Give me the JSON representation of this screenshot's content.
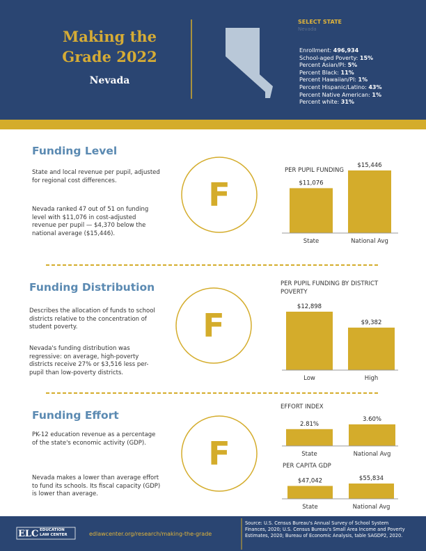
{
  "header": {
    "title": "Making the Grade 2022",
    "state": "Nevada",
    "select_label": "SELECT STATE",
    "select_value": "Nevada",
    "stats": [
      {
        "label": "Enrollment:",
        "value": "496,934"
      },
      {
        "label": "School-aged Poverty:",
        "value": "15%"
      },
      {
        "label": "Percent Asian/PI:",
        "value": "5%"
      },
      {
        "label": "Percent Black:",
        "value": "11%"
      },
      {
        "label": "Percent Hawaiian/PI:",
        "value": "1%"
      },
      {
        "label": "Percent Hispanic/Latino:",
        "value": "43%"
      },
      {
        "label": "Percent Native American:",
        "value": "1%"
      },
      {
        "label": "Percent white:",
        "value": "31%"
      }
    ]
  },
  "sections": [
    {
      "title": "Funding Level",
      "description": "State and local revenue per pupil, adjusted for regional cost differences.",
      "detail": "Nevada ranked 47 out of 51 on funding level with $11,076 in cost-adjusted revenue per pupil — $4,370  below the national average ($15,446).",
      "grade": "F",
      "charts": [
        {
          "type": "bar",
          "title": "PER PUPIL FUNDING",
          "categories": [
            "State",
            "National Avg"
          ],
          "values": [
            11076,
            15446
          ],
          "value_labels": [
            "$11,076",
            "$15,446"
          ]
        }
      ]
    },
    {
      "title": "Funding Distribution",
      "description": "Describes the allocation of funds to school districts relative to the concentration of student poverty.",
      "detail": "Nevada's funding distribution was regressive: on average, high-poverty districts receive 27% or $3,516 less per-pupil than low-poverty districts.",
      "grade": "F",
      "charts": [
        {
          "type": "bar",
          "title": "PER PUPIL FUNDING BY DISTRICT POVERTY",
          "categories": [
            "Low",
            "High"
          ],
          "values": [
            12898,
            9382
          ],
          "value_labels": [
            "$12,898",
            "$9,382"
          ]
        }
      ]
    },
    {
      "title": "Funding Effort",
      "description": "PK-12 education revenue as a percentage of the state's economic activity (GDP).",
      "detail": "Nevada makes a lower than average effort to fund its schools. Its fiscal capacity (GDP) is lower than average.",
      "grade": "F",
      "charts": [
        {
          "type": "bar",
          "title": "EFFORT INDEX",
          "categories": [
            "State",
            "National Avg"
          ],
          "values": [
            2.81,
            3.6
          ],
          "value_labels": [
            "2.81%",
            "3.60%"
          ]
        },
        {
          "type": "bar",
          "title": "PER CAPITA GDP",
          "categories": [
            "State",
            "National Avg"
          ],
          "values": [
            47042,
            55834
          ],
          "value_labels": [
            "$47,042",
            "$55,834"
          ]
        }
      ]
    }
  ],
  "footer": {
    "logo": "ELC",
    "logo_text": "EDUCATION LAW CENTER",
    "url": "edlawcenter.org/research/making-the-grade",
    "source": "Source: U.S. Census Bureau's Annual Survey of School System Finances, 2020; U.S. Census Bureau's Small Area Income and Poverty Estimates, 2020; Bureau of Economic Analysis, table SAGDP2, 2020."
  }
}
